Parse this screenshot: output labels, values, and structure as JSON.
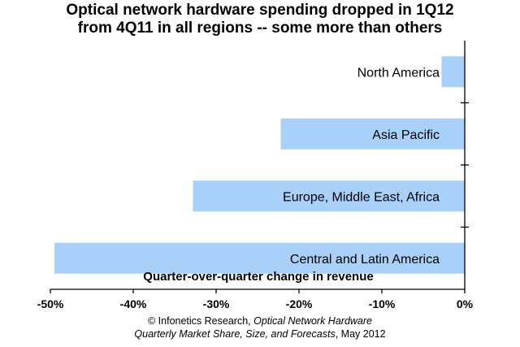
{
  "title": {
    "line1": "Optical network hardware spending dropped in 1Q12",
    "line2": "from 4Q11 in all regions -- some more than others"
  },
  "credit": {
    "prefix": "© Infonetics Research, ",
    "italic1": "Optical Network Hardware",
    "italic2": "Quarterly Market Share, Size, and Forecasts",
    "suffix": ", May 2012"
  },
  "chart_data": {
    "type": "bar",
    "orientation": "horizontal",
    "categories": [
      "North America",
      "Asia Pacific",
      "Europe, Middle East, Africa",
      "Central and Latin America"
    ],
    "values": [
      -2.8,
      -22.2,
      -32.8,
      -49.5
    ],
    "xlabel": "Quarter-over-quarter change in revenue",
    "xlim": [
      -50,
      0
    ],
    "xticks": [
      -50,
      -40,
      -30,
      -20,
      -10,
      0
    ],
    "xtick_labels": [
      "-50%",
      "-40%",
      "-30%",
      "-20%",
      "-10%",
      "0%"
    ],
    "bar_color": "#a8d0f8",
    "grid": false
  }
}
